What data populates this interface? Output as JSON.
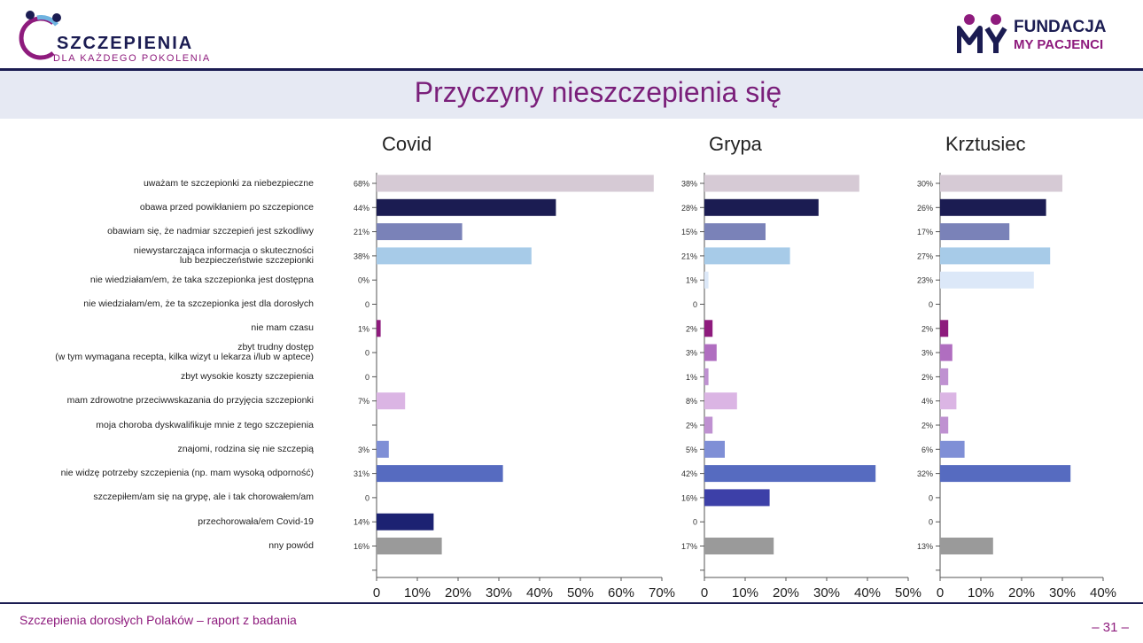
{
  "header": {
    "logo_left": {
      "brand": "SZCZEPIENIA",
      "subtitle": "DLA KAŻDEGO POKOLENIA"
    },
    "logo_right": {
      "line1": "FUNDACJA",
      "line2": "MY PACJENCI"
    },
    "title": "Przyczyny nieszczepienia się"
  },
  "footer": {
    "text": "Szczepienia dorosłych Polaków – raport z badania",
    "page": "– 31 –"
  },
  "colors": [
    "#d6cad5",
    "#1b1c52",
    "#7a82b8",
    "#a7cbe8",
    "#dce8f8",
    "#dce8f8",
    "#8e1b7d",
    "#b06ec0",
    "#bf91d1",
    "#dbb5e4",
    "#bf91d1",
    "#7f8fd6",
    "#566bc0",
    "#3d40a8",
    "#1c2272",
    "#9a9a9a"
  ],
  "labels": [
    "uważam te szczepionki za niebezpieczne",
    "obawa przed powikłaniem po szczepionce",
    "obawiam się, że nadmiar szczepień jest szkodliwy",
    "niewystarczająca informacja o skuteczności\nlub bezpieczeństwie szczepionki",
    "nie wiedziałam/em, że taka szczepionka jest dostępna",
    "nie wiedziałam/em, że ta szczepionka jest dla dorosłych",
    "nie mam czasu",
    "zbyt trudny dostęp\n(w tym wymagana recepta, kilka wizyt u lekarza i/lub w aptece)",
    "zbyt wysokie koszty szczepienia",
    "mam zdrowotne przeciwwskazania do przyjęcia szczepionki",
    "moja choroba dyskwalifikuje mnie z tego szczepienia",
    "znajomi, rodzina się nie szczepią",
    "nie widzę potrzeby szczepienia (np. mam wysoką odporność)",
    "szczepiłem/am się na grypę, ale i tak chorowałem/am",
    "przechorowała/em Covid-19",
    "nny powód"
  ],
  "chart_data": [
    {
      "type": "bar",
      "title": "Covid",
      "categories": "labels",
      "values": [
        68,
        44,
        21,
        38,
        0,
        0,
        1,
        0,
        0,
        7,
        null,
        3,
        31,
        0,
        14,
        16
      ],
      "value_labels": [
        "68%",
        "44%",
        "21%",
        "38%",
        "0%",
        "0",
        "1%",
        "0",
        "0",
        "7%",
        "",
        "3%",
        "31%",
        "0",
        "14%",
        "16%"
      ],
      "xlim": [
        0,
        70
      ],
      "xticks": [
        "0",
        "10%",
        "20%",
        "30%",
        "40%",
        "50%",
        "60%",
        "70%"
      ]
    },
    {
      "type": "bar",
      "title": "Grypa",
      "categories": "labels",
      "values": [
        38,
        28,
        15,
        21,
        1,
        0,
        2,
        3,
        1,
        8,
        2,
        5,
        42,
        16,
        0,
        17
      ],
      "value_labels": [
        "38%",
        "28%",
        "15%",
        "21%",
        "1%",
        "0",
        "2%",
        "3%",
        "1%",
        "8%",
        "2%",
        "5%",
        "42%",
        "16%",
        "0",
        "17%"
      ],
      "xlim": [
        0,
        50
      ],
      "xticks": [
        "0",
        "10%",
        "20%",
        "30%",
        "40%",
        "50%"
      ]
    },
    {
      "type": "bar",
      "title": "Krztusiec",
      "categories": "labels",
      "values": [
        30,
        26,
        17,
        27,
        23,
        0,
        2,
        3,
        2,
        4,
        2,
        6,
        32,
        0,
        0,
        13
      ],
      "value_labels": [
        "30%",
        "26%",
        "17%",
        "27%",
        "23%",
        "0",
        "2%",
        "3%",
        "2%",
        "4%",
        "2%",
        "6%",
        "32%",
        "0",
        "0",
        "13%"
      ],
      "xlim": [
        0,
        40
      ],
      "xticks": [
        "0",
        "10%",
        "20%",
        "30%",
        "40%"
      ]
    }
  ]
}
